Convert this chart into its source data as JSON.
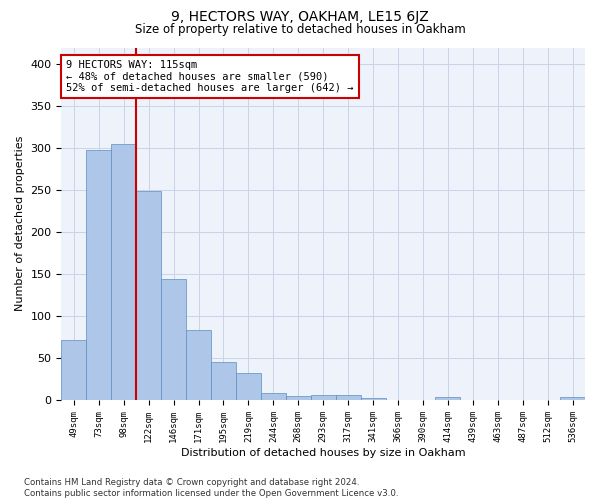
{
  "title": "9, HECTORS WAY, OAKHAM, LE15 6JZ",
  "subtitle": "Size of property relative to detached houses in Oakham",
  "xlabel": "Distribution of detached houses by size in Oakham",
  "ylabel": "Number of detached properties",
  "bar_labels": [
    "49sqm",
    "73sqm",
    "98sqm",
    "122sqm",
    "146sqm",
    "171sqm",
    "195sqm",
    "219sqm",
    "244sqm",
    "268sqm",
    "293sqm",
    "317sqm",
    "341sqm",
    "366sqm",
    "390sqm",
    "414sqm",
    "439sqm",
    "463sqm",
    "487sqm",
    "512sqm",
    "536sqm"
  ],
  "bar_values": [
    72,
    298,
    305,
    249,
    144,
    83,
    45,
    32,
    8,
    5,
    6,
    6,
    2,
    0,
    0,
    3,
    0,
    0,
    0,
    0,
    3
  ],
  "bar_color": "#aec6e8",
  "bar_edge_color": "#5a8fc2",
  "grid_color": "#c8d4e8",
  "vline_color": "#cc0000",
  "annotation_text": "9 HECTORS WAY: 115sqm\n← 48% of detached houses are smaller (590)\n52% of semi-detached houses are larger (642) →",
  "annotation_box_color": "#ffffff",
  "annotation_box_edge": "#cc0000",
  "ylim": [
    0,
    420
  ],
  "yticks": [
    0,
    50,
    100,
    150,
    200,
    250,
    300,
    350,
    400
  ],
  "footer": "Contains HM Land Registry data © Crown copyright and database right 2024.\nContains public sector information licensed under the Open Government Licence v3.0.",
  "background_color": "#eef2fa"
}
